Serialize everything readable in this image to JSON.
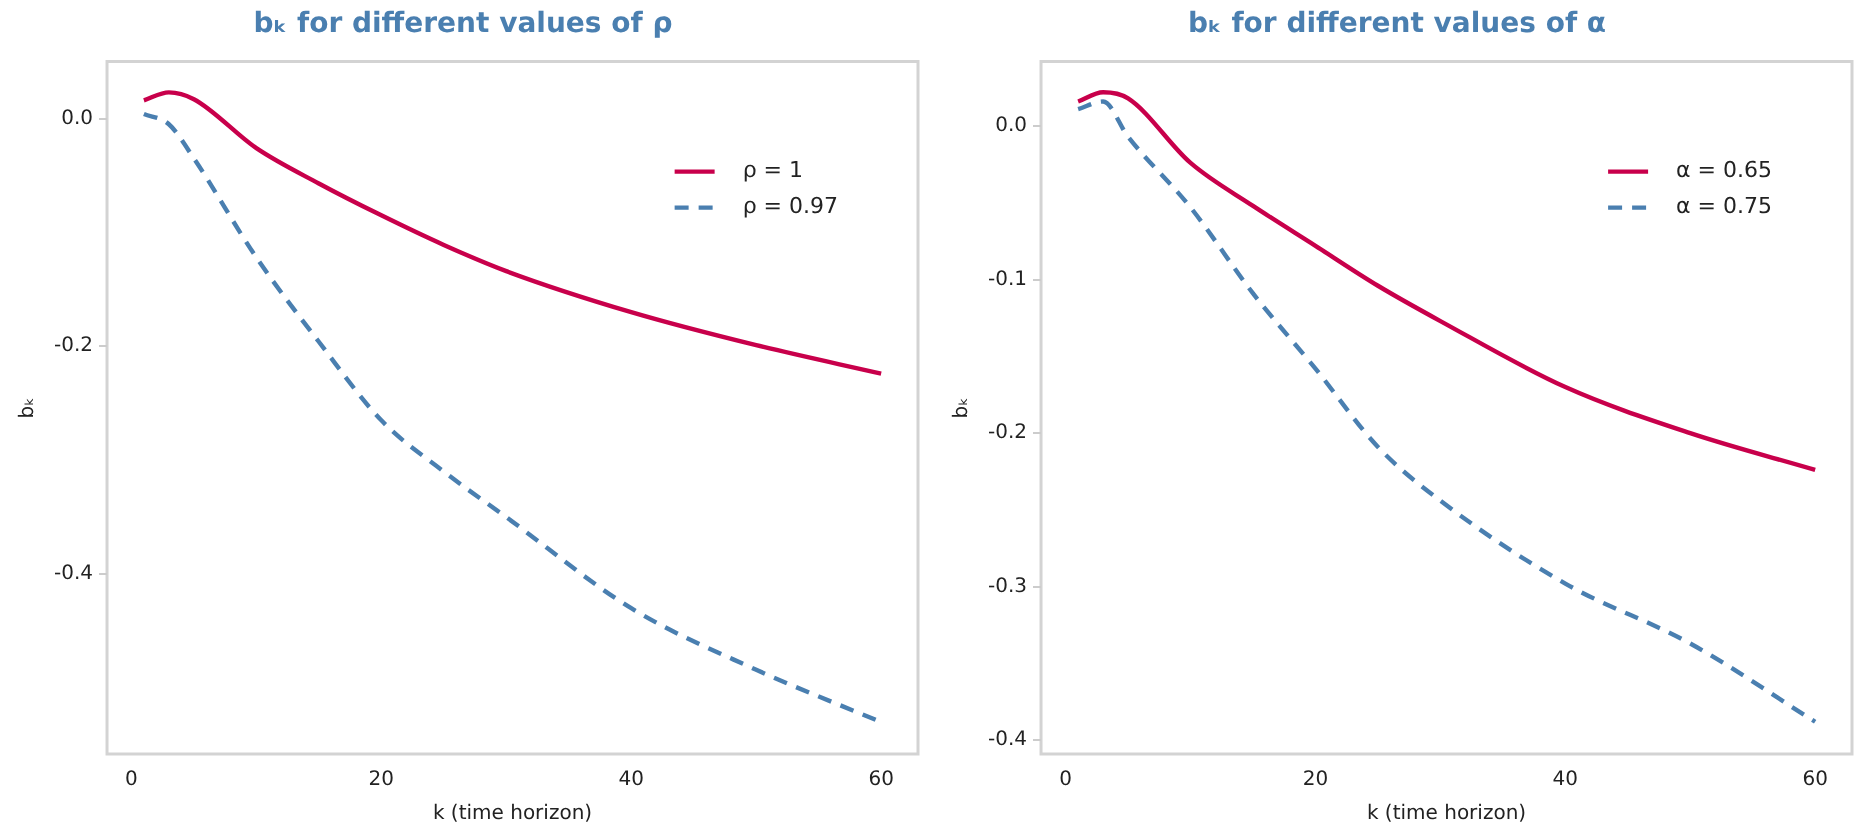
{
  "chart_data": [
    {
      "type": "line",
      "title": "bₖ for different values of ρ",
      "xlabel": "k (time horizon)",
      "ylabel": "bₖ",
      "x": [
        1,
        3,
        5,
        10,
        15,
        20,
        25,
        30,
        40,
        50,
        60
      ],
      "series": [
        {
          "name": "ρ = 1",
          "color": "#c8004b",
          "line_style": "solid",
          "values": [
            0.016,
            0.023,
            0.017,
            -0.026,
            -0.057,
            -0.085,
            -0.111,
            -0.134,
            -0.17,
            -0.199,
            -0.224
          ]
        },
        {
          "name": "ρ = 0.97",
          "color": "#4a7fb0",
          "line_style": "dashed",
          "values": [
            0.004,
            -0.005,
            -0.035,
            -0.122,
            -0.196,
            -0.265,
            -0.31,
            -0.35,
            -0.43,
            -0.484,
            -0.53
          ]
        }
      ],
      "xlim": [
        -1.95,
        62.95
      ],
      "xticks": [
        0,
        20,
        40,
        60
      ],
      "ylim": [
        -0.558,
        0.05
      ],
      "yticks": [
        {
          "value": 0,
          "label": "0.0"
        },
        -0.2,
        -0.4
      ],
      "grid": false,
      "legend": "top right",
      "marker": "none"
    },
    {
      "type": "line",
      "title": "bₖ for different values of α",
      "xlabel": "k (time horizon)",
      "ylabel": "bₖ",
      "x": [
        1,
        3,
        5,
        10,
        15,
        20,
        25,
        30,
        40,
        50,
        60
      ],
      "series": [
        {
          "name": "α = 0.65",
          "color": "#c8004b",
          "line_style": "solid",
          "values": [
            0.016,
            0.022,
            0.018,
            -0.024,
            -0.052,
            -0.078,
            -0.104,
            -0.127,
            -0.17,
            -0.2,
            -0.224
          ]
        },
        {
          "name": "α = 0.75",
          "color": "#4a7fb0",
          "line_style": "dashed",
          "values": [
            0.011,
            0.016,
            -0.007,
            -0.053,
            -0.109,
            -0.158,
            -0.209,
            -0.244,
            -0.298,
            -0.337,
            -0.388
          ]
        }
      ],
      "xlim": [
        -1.97,
        62.95
      ],
      "xticks": [
        0,
        20,
        40,
        60
      ],
      "ylim": [
        -0.409,
        0.042
      ],
      "yticks": [
        {
          "value": 0,
          "label": "0.0"
        },
        -0.1,
        -0.2,
        -0.3,
        -0.4
      ],
      "grid": false,
      "legend": "top right",
      "marker": "none"
    }
  ]
}
